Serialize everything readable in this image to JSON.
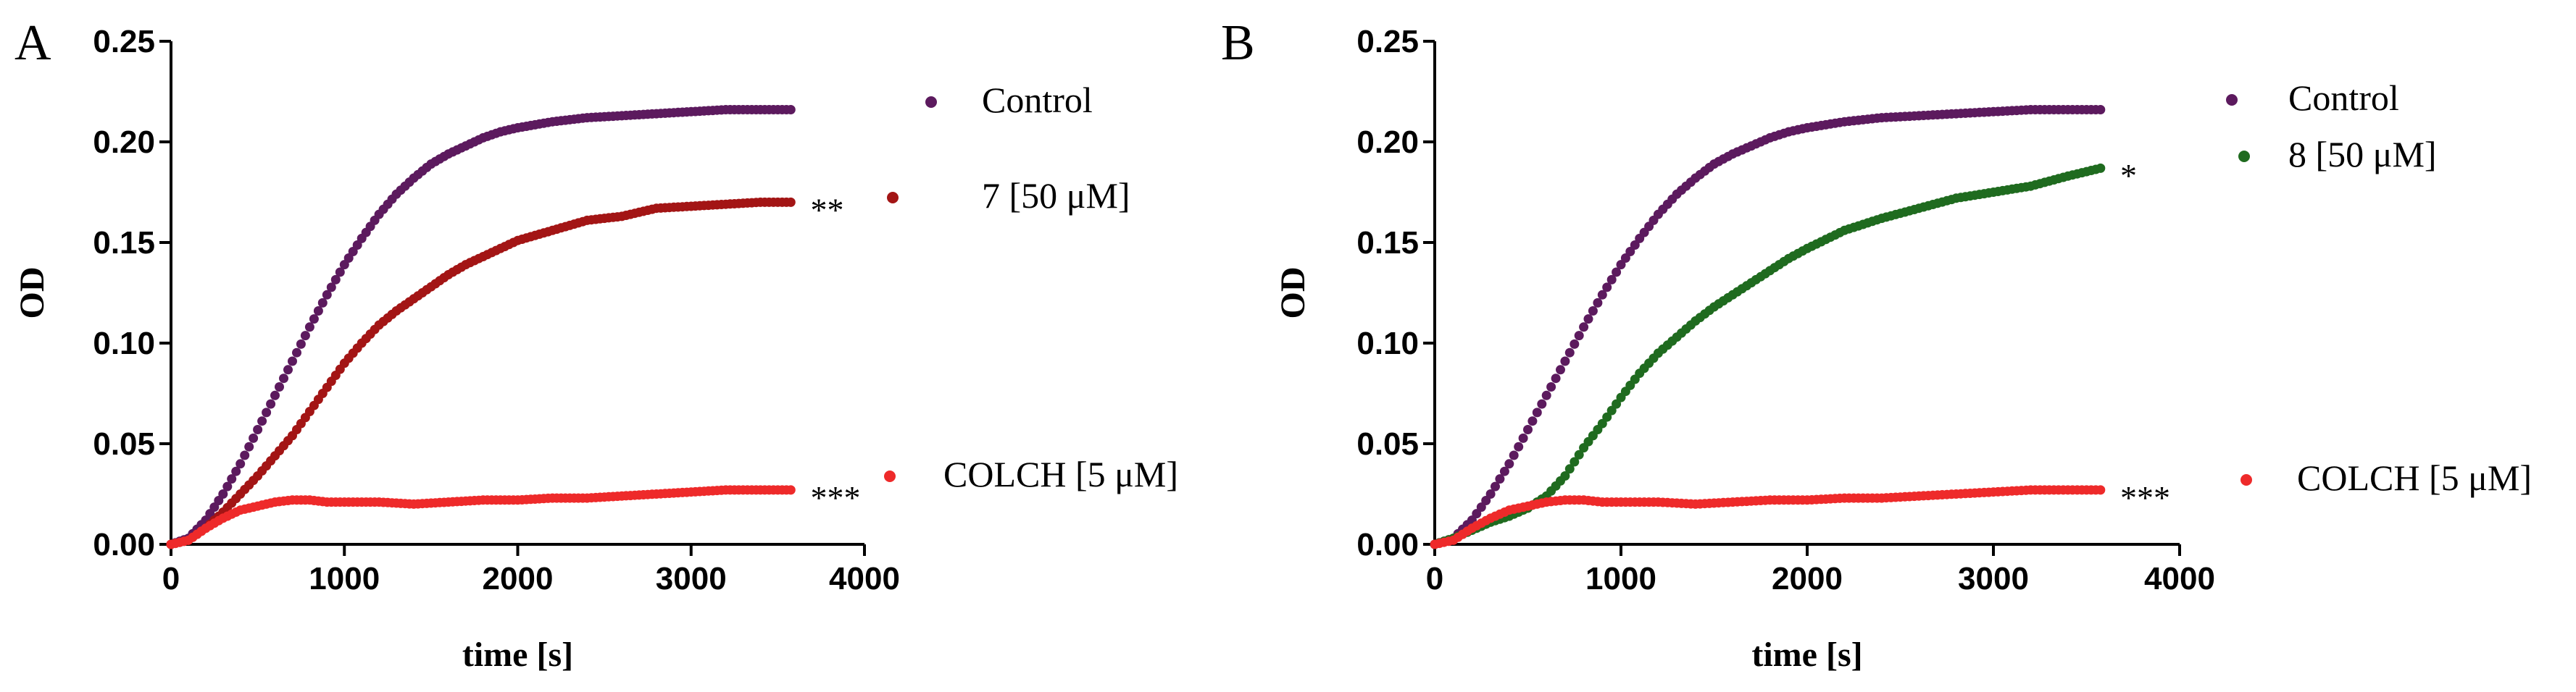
{
  "chart_data": [
    {
      "type": "scatter",
      "panel_label": "A",
      "xlabel": "time [s]",
      "ylabel": "OD",
      "xlim": [
        0,
        4000
      ],
      "ylim": [
        0,
        0.25
      ],
      "x_ticks": [
        "0",
        "1000",
        "2000",
        "3000",
        "4000"
      ],
      "y_ticks": [
        "0.00",
        "0.05",
        "0.10",
        "0.15",
        "0.20",
        "0.25"
      ],
      "series": [
        {
          "name": "Control",
          "color": "#5c1a5e",
          "significance": "",
          "points": [
            [
              0,
              0.0
            ],
            [
              100,
              0.003
            ],
            [
              200,
              0.012
            ],
            [
              300,
              0.025
            ],
            [
              400,
              0.04
            ],
            [
              500,
              0.057
            ],
            [
              600,
              0.074
            ],
            [
              700,
              0.091
            ],
            [
              800,
              0.108
            ],
            [
              900,
              0.124
            ],
            [
              1000,
              0.139
            ],
            [
              1100,
              0.152
            ],
            [
              1200,
              0.164
            ],
            [
              1300,
              0.174
            ],
            [
              1400,
              0.182
            ],
            [
              1500,
              0.189
            ],
            [
              1600,
              0.194
            ],
            [
              1700,
              0.198
            ],
            [
              1800,
              0.202
            ],
            [
              1900,
              0.205
            ],
            [
              2000,
              0.207
            ],
            [
              2200,
              0.21
            ],
            [
              2400,
              0.212
            ],
            [
              2600,
              0.213
            ],
            [
              2800,
              0.214
            ],
            [
              3000,
              0.215
            ],
            [
              3200,
              0.216
            ],
            [
              3400,
              0.216
            ],
            [
              3580,
              0.216
            ]
          ]
        },
        {
          "name": "7 [50 μM]",
          "color": "#a31515",
          "significance": "**",
          "points": [
            [
              0,
              0.0
            ],
            [
              100,
              0.002
            ],
            [
              200,
              0.008
            ],
            [
              300,
              0.016
            ],
            [
              400,
              0.025
            ],
            [
              500,
              0.034
            ],
            [
              600,
              0.044
            ],
            [
              700,
              0.054
            ],
            [
              800,
              0.066
            ],
            [
              900,
              0.078
            ],
            [
              1000,
              0.09
            ],
            [
              1100,
              0.1
            ],
            [
              1200,
              0.109
            ],
            [
              1300,
              0.116
            ],
            [
              1400,
              0.122
            ],
            [
              1500,
              0.128
            ],
            [
              1600,
              0.134
            ],
            [
              1700,
              0.139
            ],
            [
              1800,
              0.143
            ],
            [
              1900,
              0.147
            ],
            [
              2000,
              0.151
            ],
            [
              2200,
              0.156
            ],
            [
              2400,
              0.161
            ],
            [
              2600,
              0.163
            ],
            [
              2800,
              0.167
            ],
            [
              3000,
              0.168
            ],
            [
              3200,
              0.169
            ],
            [
              3400,
              0.17
            ],
            [
              3580,
              0.17
            ]
          ]
        },
        {
          "name": "COLCH [5 μM]",
          "color": "#ee2a2a",
          "significance": "***",
          "points": [
            [
              0,
              0.0
            ],
            [
              100,
              0.002
            ],
            [
              200,
              0.008
            ],
            [
              300,
              0.013
            ],
            [
              400,
              0.017
            ],
            [
              500,
              0.019
            ],
            [
              600,
              0.021
            ],
            [
              700,
              0.022
            ],
            [
              800,
              0.022
            ],
            [
              900,
              0.021
            ],
            [
              1000,
              0.021
            ],
            [
              1200,
              0.021
            ],
            [
              1400,
              0.02
            ],
            [
              1600,
              0.021
            ],
            [
              1800,
              0.022
            ],
            [
              2000,
              0.022
            ],
            [
              2200,
              0.023
            ],
            [
              2400,
              0.023
            ],
            [
              2600,
              0.024
            ],
            [
              2800,
              0.025
            ],
            [
              3000,
              0.026
            ],
            [
              3200,
              0.027
            ],
            [
              3400,
              0.027
            ],
            [
              3580,
              0.027
            ]
          ]
        }
      ]
    },
    {
      "type": "scatter",
      "panel_label": "B",
      "xlabel": "time [s]",
      "ylabel": "OD",
      "xlim": [
        0,
        4000
      ],
      "ylim": [
        0,
        0.25
      ],
      "x_ticks": [
        "0",
        "1000",
        "2000",
        "3000",
        "4000"
      ],
      "y_ticks": [
        "0.00",
        "0.05",
        "0.10",
        "0.15",
        "0.20",
        "0.25"
      ],
      "series": [
        {
          "name": "Control",
          "color": "#5c1a5e",
          "significance": "",
          "points": [
            [
              0,
              0.0
            ],
            [
              100,
              0.003
            ],
            [
              200,
              0.012
            ],
            [
              300,
              0.025
            ],
            [
              400,
              0.04
            ],
            [
              500,
              0.057
            ],
            [
              600,
              0.074
            ],
            [
              700,
              0.091
            ],
            [
              800,
              0.108
            ],
            [
              900,
              0.124
            ],
            [
              1000,
              0.139
            ],
            [
              1100,
              0.152
            ],
            [
              1200,
              0.164
            ],
            [
              1300,
              0.174
            ],
            [
              1400,
              0.182
            ],
            [
              1500,
              0.189
            ],
            [
              1600,
              0.194
            ],
            [
              1700,
              0.198
            ],
            [
              1800,
              0.202
            ],
            [
              1900,
              0.205
            ],
            [
              2000,
              0.207
            ],
            [
              2200,
              0.21
            ],
            [
              2400,
              0.212
            ],
            [
              2600,
              0.213
            ],
            [
              2800,
              0.214
            ],
            [
              3000,
              0.215
            ],
            [
              3200,
              0.216
            ],
            [
              3400,
              0.216
            ],
            [
              3580,
              0.216
            ]
          ]
        },
        {
          "name": "8 [50 μM]",
          "color": "#1f6b1f",
          "significance": "*",
          "points": [
            [
              0,
              0.0
            ],
            [
              100,
              0.003
            ],
            [
              200,
              0.007
            ],
            [
              300,
              0.011
            ],
            [
              400,
              0.014
            ],
            [
              500,
              0.018
            ],
            [
              600,
              0.024
            ],
            [
              700,
              0.034
            ],
            [
              800,
              0.048
            ],
            [
              900,
              0.06
            ],
            [
              1000,
              0.073
            ],
            [
              1100,
              0.085
            ],
            [
              1200,
              0.095
            ],
            [
              1300,
              0.103
            ],
            [
              1400,
              0.111
            ],
            [
              1500,
              0.118
            ],
            [
              1600,
              0.124
            ],
            [
              1700,
              0.13
            ],
            [
              1800,
              0.136
            ],
            [
              1900,
              0.142
            ],
            [
              2000,
              0.147
            ],
            [
              2200,
              0.156
            ],
            [
              2400,
              0.162
            ],
            [
              2600,
              0.167
            ],
            [
              2800,
              0.172
            ],
            [
              3000,
              0.175
            ],
            [
              3200,
              0.178
            ],
            [
              3400,
              0.183
            ],
            [
              3580,
              0.187
            ]
          ]
        },
        {
          "name": "COLCH [5 μM]",
          "color": "#ee2a2a",
          "significance": "***",
          "points": [
            [
              0,
              0.0
            ],
            [
              100,
              0.002
            ],
            [
              200,
              0.008
            ],
            [
              300,
              0.013
            ],
            [
              400,
              0.017
            ],
            [
              500,
              0.019
            ],
            [
              600,
              0.021
            ],
            [
              700,
              0.022
            ],
            [
              800,
              0.022
            ],
            [
              900,
              0.021
            ],
            [
              1000,
              0.021
            ],
            [
              1200,
              0.021
            ],
            [
              1400,
              0.02
            ],
            [
              1600,
              0.021
            ],
            [
              1800,
              0.022
            ],
            [
              2000,
              0.022
            ],
            [
              2200,
              0.023
            ],
            [
              2400,
              0.023
            ],
            [
              2600,
              0.024
            ],
            [
              2800,
              0.025
            ],
            [
              3000,
              0.026
            ],
            [
              3200,
              0.027
            ],
            [
              3400,
              0.027
            ],
            [
              3580,
              0.027
            ]
          ]
        }
      ]
    }
  ]
}
